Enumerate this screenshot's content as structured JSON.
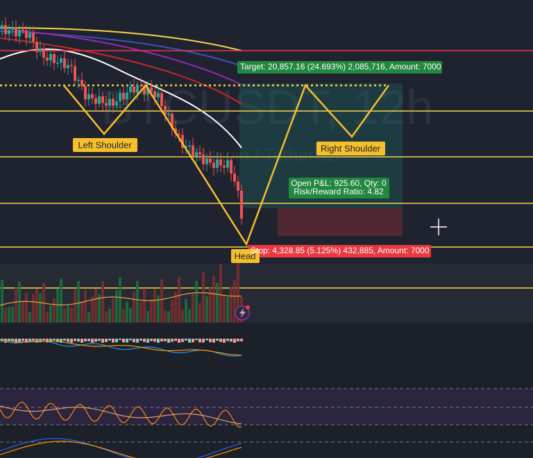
{
  "watermark": {
    "symbol": "BTCUSDT, 12h",
    "description": "Bitcoin / TetherUS"
  },
  "labels": {
    "target": "Target: 20,857.16 (24.693%) 2,085,716, Amount: 7000",
    "stop": "Stop: 4,328.85 (5.125%) 432,885, Amount: 7000",
    "pnl": "Open P&L: 925.60, Qty: 0",
    "risk_reward": "Risk/Reward Ratio: 4.82",
    "left_shoulder": "Left Shoulder",
    "right_shoulder": "Right Shoulder",
    "head": "Head"
  }
}
